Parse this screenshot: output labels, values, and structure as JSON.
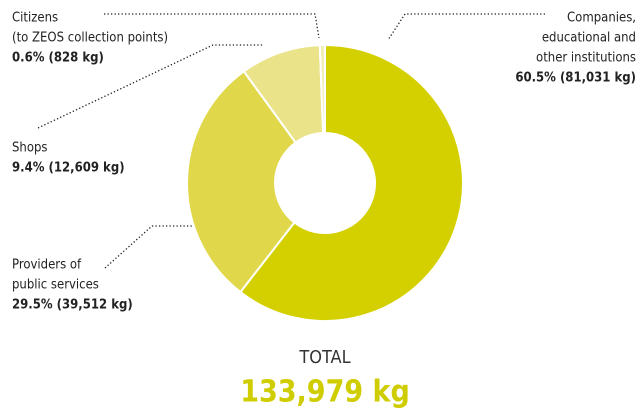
{
  "chart_data": {
    "type": "pie",
    "labels": [
      [
        "Companies,",
        "educational and",
        "other institutions"
      ],
      [
        "Providers of",
        "public services"
      ],
      [
        "Shops"
      ],
      [
        "Citizens",
        "(to ZEOS collection points)"
      ]
    ],
    "values": [
      60.5,
      29.5,
      9.4,
      0.6
    ],
    "value_labels": [
      "60.5% (81,031 kg)",
      "29.5% (39,512 kg)",
      "9.4% (12,609 kg)",
      "0.6% (828 kg)"
    ],
    "colors": [
      "#d4d000",
      "#e0d84a",
      "#ebe38a",
      "#f1eeb6"
    ],
    "total_label": "TOTAL",
    "total": "133,979 kg"
  }
}
